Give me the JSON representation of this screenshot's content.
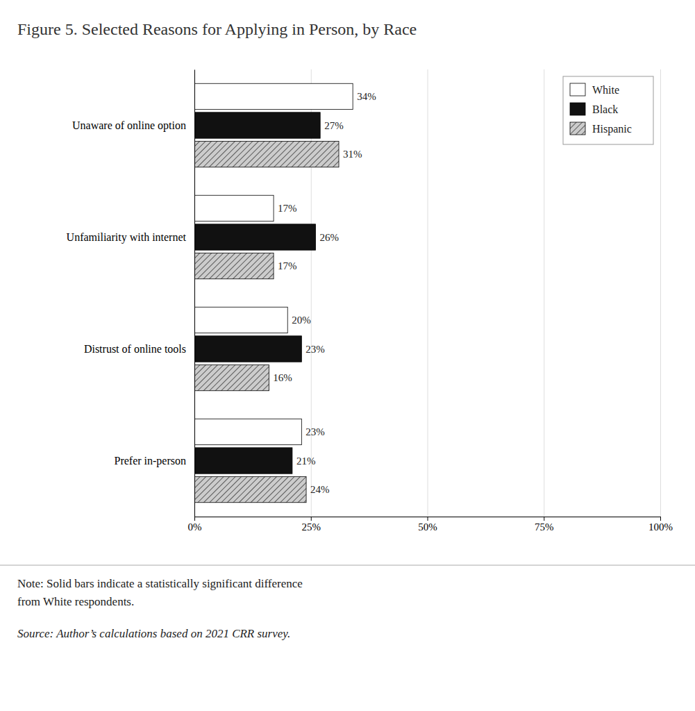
{
  "chart_data": {
    "type": "bar",
    "orientation": "horizontal",
    "title": "Figure 5. Selected Reasons for Applying in Person, by Race",
    "categories": [
      "Unaware of online option",
      "Unfamiliarity with internet",
      "Distrust of online tools",
      "Prefer in-person"
    ],
    "series": [
      {
        "name": "White",
        "color": "#ffffff",
        "values": [
          34,
          17,
          20,
          23
        ],
        "value_labels": [
          "34%",
          "17%",
          "20%",
          "23%"
        ]
      },
      {
        "name": "Black",
        "color": "#111111",
        "values": [
          27,
          26,
          23,
          21
        ],
        "value_labels": [
          "27%",
          "26%",
          "23%",
          "21%"
        ]
      },
      {
        "name": "Hispanic",
        "color": "#cccccc",
        "values": [
          31,
          17,
          16,
          24
        ],
        "value_labels": [
          "31%",
          "17%",
          "16%",
          "24%"
        ]
      }
    ],
    "xlim": [
      0,
      100
    ],
    "xticks": [
      {
        "value": 0,
        "label": "0%"
      },
      {
        "value": 25,
        "label": "25%"
      },
      {
        "value": 50,
        "label": "50%"
      },
      {
        "value": 75,
        "label": "75%"
      },
      {
        "value": 100,
        "label": "100%"
      }
    ],
    "grid": true,
    "legend": "top-right",
    "data_labels": true,
    "annotations": [
      "Note: Solid bars indicate a statistically significant difference",
      "from White respondents.",
      "Source: Author’s calculations based on 2021 CRR survey."
    ]
  }
}
